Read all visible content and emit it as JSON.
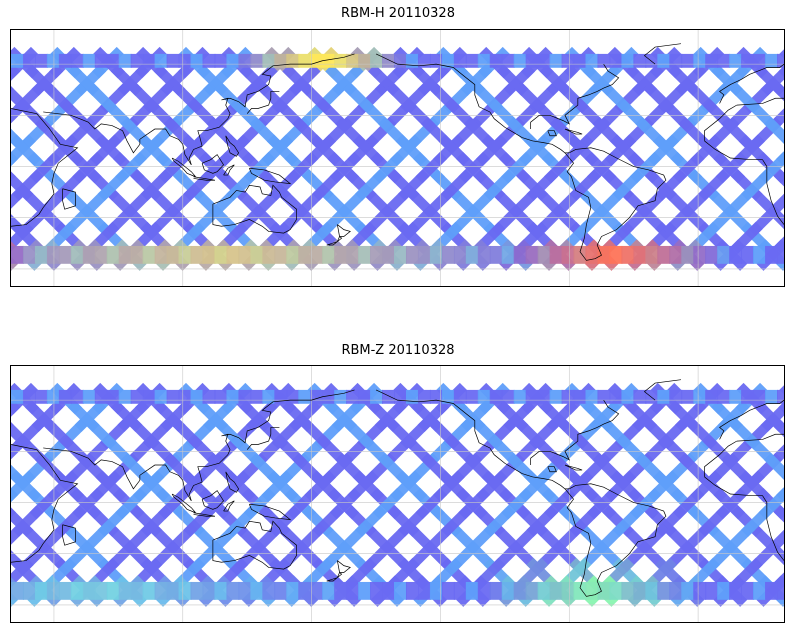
{
  "panels": [
    {
      "title": "RBM-H 20110328",
      "colormap": "jet",
      "hotspots": [
        {
          "region": "north-central",
          "lon_center": 165,
          "lat_center": 66,
          "color": "#fee85a",
          "spread": 40
        },
        {
          "region": "south-west",
          "lon_center": 5,
          "lat_center": -57,
          "color": "#ff6f5b",
          "spread": 25
        },
        {
          "region": "south-east",
          "lon_center": 300,
          "lat_center": -57,
          "color": "#ff7457",
          "spread": 55
        },
        {
          "region": "south-band",
          "lon_center": 120,
          "lat_center": -60,
          "color": "#ffe666",
          "spread": 160
        }
      ]
    },
    {
      "title": "RBM-Z 20110328",
      "colormap": "jet",
      "hotspots": [
        {
          "region": "south-east",
          "lon_center": 290,
          "lat_center": -50,
          "color": "#8af5b0",
          "spread": 50
        },
        {
          "region": "south-band",
          "lon_center": 60,
          "lat_center": -60,
          "color": "#7de8d8",
          "spread": 120
        }
      ]
    }
  ],
  "map": {
    "projection": "PlateCarree",
    "lon_range": [
      20,
      380
    ],
    "lat_range": [
      -70,
      80
    ],
    "data_lat_range": [
      -57,
      66
    ],
    "gridlines": true,
    "swath_base_color": "#6a6af2",
    "swath_alt_color": "#5f9ffa",
    "coastline_color": "#000000"
  }
}
